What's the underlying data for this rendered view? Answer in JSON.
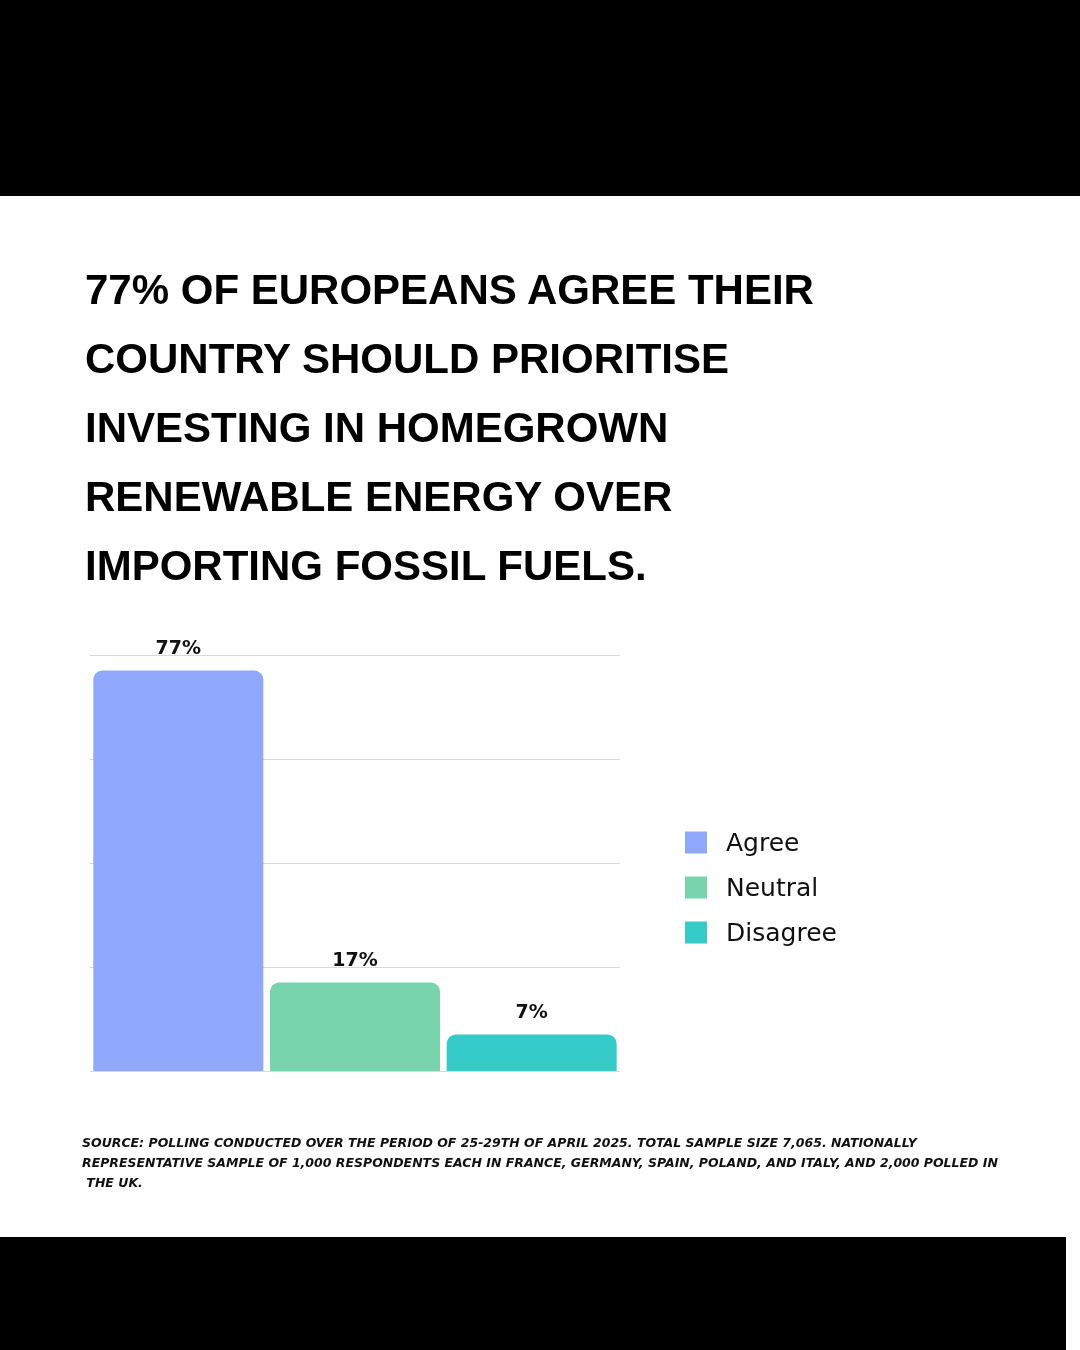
{
  "chart_data": {
    "type": "bar",
    "title": "77% OF EUROPEANS AGREE THEIR COUNTRY SHOULD PRIORITISE INVESTING IN HOMEGROWN RENEWABLE ENERGY OVER IMPORTING FOSSIL FUELS.",
    "categories": [
      null,
      null,
      null
    ],
    "stacked": true,
    "series": [
      {
        "name": "Agree",
        "color": "#8fa8fb",
        "values": [
          77,
          null,
          null
        ],
        "value_labels": [
          "77%",
          null,
          null
        ]
      },
      {
        "name": "Neutral",
        "color": "#77d4ad",
        "values": [
          null,
          17,
          null
        ],
        "value_labels": [
          null,
          "17%",
          null
        ]
      },
      {
        "name": "Disagree",
        "color": "#35cbc8",
        "values": [
          null,
          null,
          7
        ],
        "value_labels": [
          null,
          null,
          "7%"
        ]
      }
    ],
    "ylim": [
      0,
      80
    ],
    "yticks": [
      {
        "value": 0,
        "label": null
      },
      {
        "value": 20,
        "label": null
      },
      {
        "value": 40,
        "label": null
      },
      {
        "value": 60,
        "label": null
      },
      {
        "value": 80,
        "label": null
      }
    ],
    "grid": "y",
    "legend": "right",
    "annotations": [
      "SOURCE: POLLING CONDUCTED OVER THE PERIOD OF 25-29TH OF APRIL 2025. TOTAL SAMPLE SIZE 7,065. NATIONALLY REPRESENTATIVE SAMPLE OF 1,000 RESPONDENTS EACH IN FRANCE, GERMANY, SPAIN, POLAND, AND ITALY, AND 2,000 POLLED IN THE UK."
    ]
  }
}
